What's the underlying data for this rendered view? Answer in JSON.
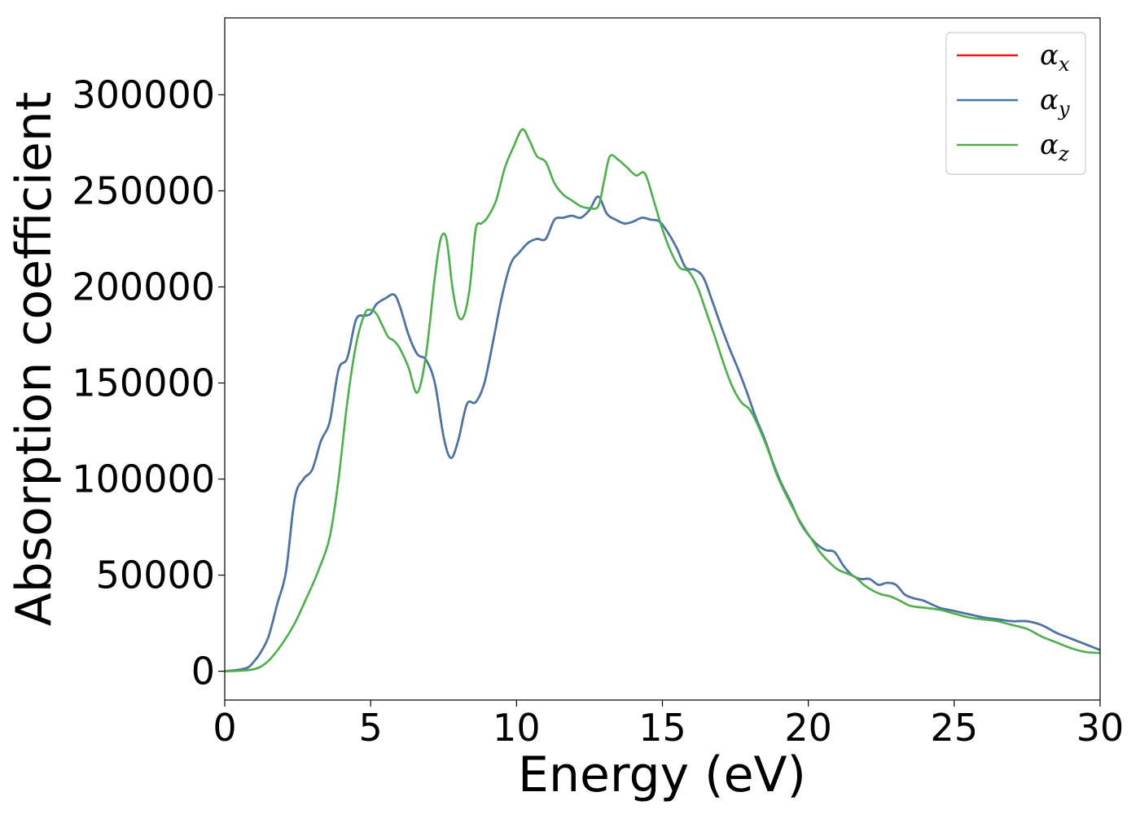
{
  "chart_data": {
    "type": "line",
    "title": "",
    "xlabel": "Energy (eV)",
    "ylabel": "Absorption coefficient",
    "xlim": [
      0,
      30
    ],
    "ylim": [
      -15000,
      340000
    ],
    "xticks": [
      0,
      5,
      10,
      15,
      20,
      25,
      30
    ],
    "yticks": [
      0,
      50000,
      100000,
      150000,
      200000,
      250000,
      300000
    ],
    "xtick_labels": [
      "0",
      "5",
      "10",
      "15",
      "20",
      "25",
      "30"
    ],
    "ytick_labels": [
      "0",
      "50000",
      "100000",
      "150000",
      "200000",
      "250000",
      "300000"
    ],
    "grid": false,
    "legend_position": "top-right",
    "series": [
      {
        "name": "α",
        "subscript": "x",
        "color": "#e41a1c",
        "x": [
          0,
          0.5,
          0.8,
          1.0,
          1.2,
          1.5,
          1.8,
          2.1,
          2.4,
          2.7,
          3.0,
          3.3,
          3.6,
          3.9,
          4.2,
          4.5,
          4.8,
          5.0,
          5.2,
          5.5,
          5.8,
          6.0,
          6.3,
          6.6,
          6.9,
          7.2,
          7.5,
          7.75,
          8.0,
          8.3,
          8.6,
          8.9,
          9.2,
          9.5,
          9.8,
          10.1,
          10.4,
          10.7,
          11.0,
          11.3,
          11.6,
          11.9,
          12.2,
          12.5,
          12.8,
          13.1,
          13.4,
          13.7,
          14.0,
          14.3,
          14.6,
          14.9,
          15.2,
          15.5,
          15.8,
          16.1,
          16.4,
          16.7,
          17.0,
          17.3,
          17.6,
          17.9,
          18.2,
          18.5,
          18.8,
          19.1,
          19.4,
          19.7,
          20.0,
          20.3,
          20.6,
          20.9,
          21.2,
          21.5,
          21.8,
          22.1,
          22.4,
          22.7,
          23.0,
          23.3,
          23.6,
          23.9,
          24.2,
          24.5,
          24.8,
          25.1,
          25.4,
          25.7,
          26.0,
          26.5,
          27.0,
          27.5,
          28.0,
          28.5,
          29.0,
          29.5,
          30.0
        ],
        "y": [
          0,
          800,
          2000,
          5000,
          9000,
          18000,
          35000,
          52000,
          90000,
          100000,
          105000,
          120000,
          130000,
          157000,
          163000,
          183000,
          185000,
          186000,
          191000,
          194000,
          196000,
          190000,
          175000,
          165000,
          162000,
          150000,
          122000,
          111000,
          120000,
          139000,
          140000,
          150000,
          172000,
          195000,
          212000,
          218000,
          223000,
          225000,
          225000,
          235000,
          236000,
          237000,
          236000,
          240000,
          247000,
          238000,
          235000,
          233000,
          234000,
          236000,
          235000,
          234000,
          228000,
          220000,
          210000,
          209000,
          205000,
          193000,
          180000,
          168000,
          157000,
          145000,
          132000,
          121000,
          108000,
          97000,
          88000,
          78000,
          71000,
          66000,
          63000,
          62000,
          55000,
          50000,
          48000,
          48000,
          45000,
          46000,
          45000,
          40000,
          38000,
          37000,
          35000,
          33000,
          32000,
          31000,
          30000,
          29000,
          28000,
          27000,
          26000,
          26000,
          24000,
          20000,
          17000,
          14000,
          11000
        ]
      },
      {
        "name": "α",
        "subscript": "y",
        "color": "#4477aa",
        "x": [
          0,
          0.5,
          0.8,
          1.0,
          1.2,
          1.5,
          1.8,
          2.1,
          2.4,
          2.7,
          3.0,
          3.3,
          3.6,
          3.9,
          4.2,
          4.5,
          4.8,
          5.0,
          5.2,
          5.5,
          5.8,
          6.0,
          6.3,
          6.6,
          6.9,
          7.2,
          7.5,
          7.75,
          8.0,
          8.3,
          8.6,
          8.9,
          9.2,
          9.5,
          9.8,
          10.1,
          10.4,
          10.7,
          11.0,
          11.3,
          11.6,
          11.9,
          12.2,
          12.5,
          12.8,
          13.1,
          13.4,
          13.7,
          14.0,
          14.3,
          14.6,
          14.9,
          15.2,
          15.5,
          15.8,
          16.1,
          16.4,
          16.7,
          17.0,
          17.3,
          17.6,
          17.9,
          18.2,
          18.5,
          18.8,
          19.1,
          19.4,
          19.7,
          20.0,
          20.3,
          20.6,
          20.9,
          21.2,
          21.5,
          21.8,
          22.1,
          22.4,
          22.7,
          23.0,
          23.3,
          23.6,
          23.9,
          24.2,
          24.5,
          24.8,
          25.1,
          25.4,
          25.7,
          26.0,
          26.5,
          27.0,
          27.5,
          28.0,
          28.5,
          29.0,
          29.5,
          30.0
        ],
        "y": [
          0,
          800,
          2000,
          5000,
          9000,
          18000,
          35000,
          52000,
          90000,
          100000,
          105000,
          120000,
          130000,
          157000,
          163000,
          183000,
          185000,
          186000,
          191000,
          194000,
          196000,
          190000,
          175000,
          165000,
          162000,
          150000,
          122000,
          111000,
          120000,
          139000,
          140000,
          150000,
          172000,
          195000,
          212000,
          218000,
          223000,
          225000,
          225000,
          235000,
          236000,
          237000,
          236000,
          240000,
          247000,
          238000,
          235000,
          233000,
          234000,
          236000,
          235000,
          234000,
          228000,
          220000,
          210000,
          209000,
          205000,
          193000,
          180000,
          168000,
          157000,
          145000,
          132000,
          121000,
          108000,
          97000,
          88000,
          78000,
          71000,
          66000,
          63000,
          62000,
          55000,
          50000,
          48000,
          48000,
          45000,
          46000,
          45000,
          40000,
          38000,
          37000,
          35000,
          33000,
          32000,
          31000,
          30000,
          29000,
          28000,
          27000,
          26000,
          26000,
          24000,
          20000,
          17000,
          14000,
          11000
        ]
      },
      {
        "name": "α",
        "subscript": "z",
        "color": "#4daf4a",
        "x": [
          0,
          0.5,
          1.0,
          1.3,
          1.6,
          2.0,
          2.4,
          2.8,
          3.2,
          3.6,
          3.9,
          4.2,
          4.5,
          4.8,
          5.0,
          5.2,
          5.4,
          5.6,
          5.8,
          6.0,
          6.3,
          6.6,
          6.9,
          7.2,
          7.4,
          7.6,
          7.8,
          8.0,
          8.2,
          8.4,
          8.6,
          8.8,
          9.0,
          9.3,
          9.6,
          9.9,
          10.2,
          10.45,
          10.7,
          11.0,
          11.3,
          11.6,
          11.9,
          12.2,
          12.5,
          12.8,
          13.0,
          13.2,
          13.5,
          13.8,
          14.1,
          14.4,
          14.7,
          15.0,
          15.3,
          15.6,
          15.9,
          16.2,
          16.5,
          16.8,
          17.1,
          17.4,
          17.7,
          18.0,
          18.3,
          18.6,
          18.9,
          19.2,
          19.5,
          19.8,
          20.1,
          20.4,
          20.7,
          21.0,
          21.3,
          21.6,
          21.9,
          22.2,
          22.5,
          22.8,
          23.1,
          23.5,
          24.0,
          24.5,
          25.0,
          25.5,
          26.0,
          26.5,
          27.0,
          27.5,
          28.0,
          28.5,
          29.0,
          29.5,
          30.0
        ],
        "y": [
          0,
          200,
          1000,
          3000,
          7000,
          15000,
          25000,
          38000,
          52000,
          70000,
          100000,
          140000,
          170000,
          186000,
          188000,
          186000,
          180000,
          174000,
          172000,
          168000,
          158000,
          145000,
          165000,
          205000,
          225000,
          225000,
          200000,
          185000,
          185000,
          200000,
          230000,
          233000,
          236000,
          245000,
          262000,
          273000,
          282000,
          276000,
          268000,
          265000,
          254000,
          248000,
          245000,
          242000,
          241000,
          242000,
          255000,
          268000,
          266000,
          262000,
          258000,
          259000,
          245000,
          230000,
          218000,
          210000,
          208000,
          200000,
          187000,
          174000,
          160000,
          148000,
          140000,
          136000,
          127000,
          116000,
          103000,
          93000,
          84000,
          76000,
          69000,
          62000,
          57000,
          53000,
          51000,
          49000,
          45000,
          42000,
          40000,
          39000,
          37000,
          34000,
          33000,
          32000,
          30000,
          28000,
          27000,
          26000,
          24000,
          22000,
          18000,
          15000,
          12000,
          10000,
          9500
        ]
      }
    ]
  }
}
